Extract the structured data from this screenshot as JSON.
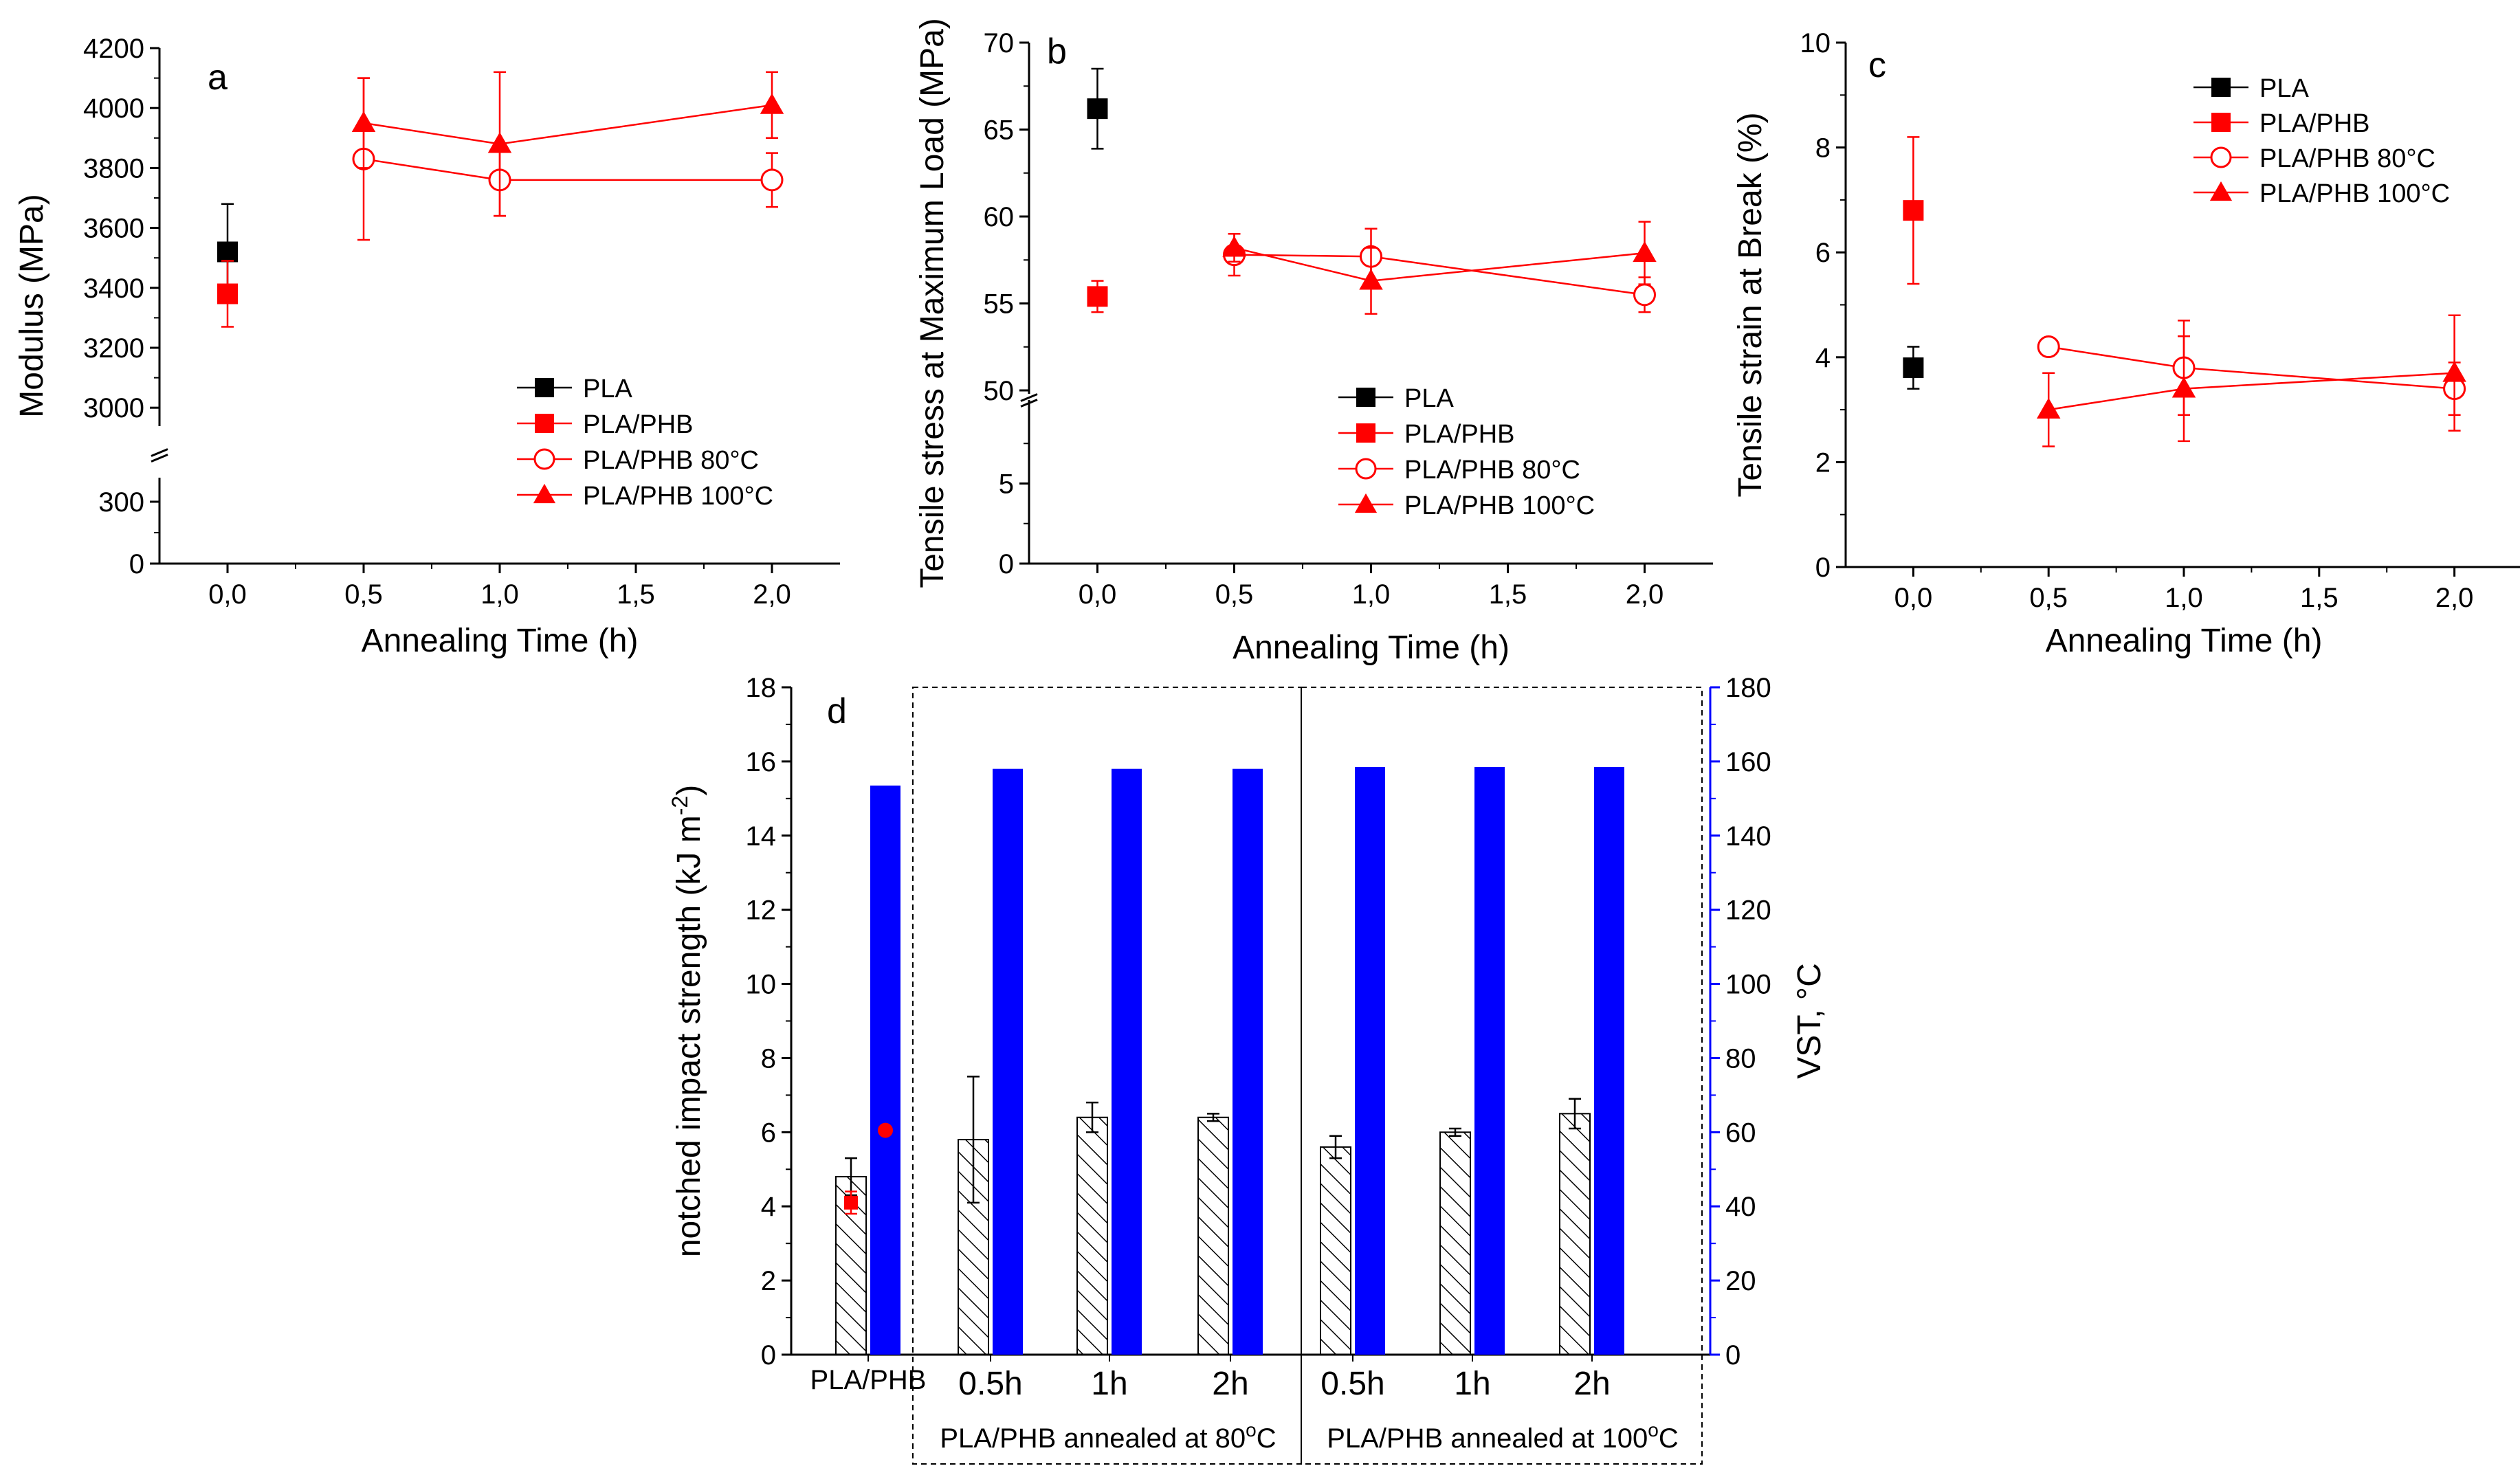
{
  "colors": {
    "black": "#000000",
    "red": "#ff0000",
    "blue": "#0000ff"
  },
  "chart_data": [
    {
      "id": "a",
      "type": "scatter",
      "panel_label": "a",
      "xlabel": "Annealing Time (h)",
      "ylabel": "Modulus (MPa)",
      "xlim": [
        -0.25,
        2.25
      ],
      "xticks": [
        "0,0",
        "0,5",
        "1,0",
        "1,5",
        "2,0"
      ],
      "ylim_lower": [
        0,
        400
      ],
      "yticks_lower": [
        "0",
        "300"
      ],
      "ylim_upper": [
        2950,
        4200
      ],
      "yticks_upper": [
        "3000",
        "3200",
        "3400",
        "3600",
        "3800",
        "4000",
        "4200"
      ],
      "legend": [
        "PLA",
        "PLA/PHB",
        "PLA/PHB 80°C",
        "PLA/PHB 100°C"
      ],
      "series": [
        {
          "name": "PLA",
          "marker": "square",
          "color": "#000000",
          "connected": false,
          "x": [
            0
          ],
          "y": [
            3520
          ],
          "err": [
            160
          ]
        },
        {
          "name": "PLA/PHB",
          "marker": "square",
          "color": "#ff0000",
          "connected": false,
          "x": [
            0
          ],
          "y": [
            3380
          ],
          "err": [
            110
          ]
        },
        {
          "name": "PLA/PHB 80°C",
          "marker": "circle-open",
          "color": "#ff0000",
          "connected": true,
          "x": [
            0.5,
            1,
            2
          ],
          "y": [
            3830,
            3760,
            3760
          ],
          "err": [
            270,
            120,
            90
          ]
        },
        {
          "name": "PLA/PHB 100°C",
          "marker": "triangle",
          "color": "#ff0000",
          "connected": true,
          "x": [
            0.5,
            1,
            2
          ],
          "y": [
            3950,
            3880,
            4010
          ],
          "err": [
            150,
            240,
            110
          ]
        }
      ]
    },
    {
      "id": "b",
      "type": "scatter",
      "panel_label": "b",
      "xlabel": "Annealing Time (h)",
      "ylabel": "Tensile stress at Maximum Load (MPa)",
      "xlim": [
        -0.25,
        2.25
      ],
      "xticks": [
        "0,0",
        "0,5",
        "1,0",
        "1,5",
        "2,0"
      ],
      "ylim_lower": [
        0,
        10
      ],
      "yticks_lower": [
        "0",
        "5"
      ],
      "ylim_upper": [
        50,
        70
      ],
      "yticks_upper": [
        "50",
        "55",
        "60",
        "65",
        "70"
      ],
      "legend": [
        "PLA",
        "PLA/PHB",
        "PLA/PHB 80°C",
        "PLA/PHB 100°C"
      ],
      "series": [
        {
          "name": "PLA",
          "marker": "square",
          "color": "#000000",
          "connected": false,
          "x": [
            0
          ],
          "y": [
            66.2
          ],
          "err": [
            2.3
          ]
        },
        {
          "name": "PLA/PHB",
          "marker": "square",
          "color": "#ff0000",
          "connected": false,
          "x": [
            0
          ],
          "y": [
            55.4
          ],
          "err": [
            0.9
          ]
        },
        {
          "name": "PLA/PHB 80°C",
          "marker": "circle-open",
          "color": "#ff0000",
          "connected": true,
          "x": [
            0.5,
            1,
            2
          ],
          "y": [
            57.8,
            57.7,
            55.5
          ],
          "err": [
            1.2,
            1.6,
            1.0
          ]
        },
        {
          "name": "PLA/PHB 100°C",
          "marker": "triangle",
          "color": "#ff0000",
          "connected": true,
          "x": [
            0.5,
            1,
            2
          ],
          "y": [
            58.2,
            56.3,
            57.9
          ],
          "err": [
            0.8,
            1.9,
            1.8
          ]
        }
      ]
    },
    {
      "id": "c",
      "type": "scatter",
      "panel_label": "c",
      "xlabel": "Annealing Time (h)",
      "ylabel": "Tensile strain at Break (%)",
      "xlim": [
        -0.25,
        2.25
      ],
      "xticks": [
        "0,0",
        "0,5",
        "1,0",
        "1,5",
        "2,0"
      ],
      "ylim": [
        0,
        10
      ],
      "yticks": [
        "0",
        "2",
        "4",
        "6",
        "8",
        "10"
      ],
      "legend": [
        "PLA",
        "PLA/PHB",
        "PLA/PHB 80°C",
        "PLA/PHB 100°C"
      ],
      "series": [
        {
          "name": "PLA",
          "marker": "square",
          "color": "#000000",
          "connected": false,
          "x": [
            0
          ],
          "y": [
            3.8
          ],
          "err": [
            0.4
          ]
        },
        {
          "name": "PLA/PHB",
          "marker": "square",
          "color": "#ff0000",
          "connected": false,
          "x": [
            0
          ],
          "y": [
            6.8
          ],
          "err": [
            1.4
          ]
        },
        {
          "name": "PLA/PHB 80°C",
          "marker": "circle-open",
          "color": "#ff0000",
          "connected": true,
          "x": [
            0.5,
            1,
            2
          ],
          "y": [
            4.2,
            3.8,
            3.4
          ],
          "err": [
            0.1,
            0.9,
            0.5
          ]
        },
        {
          "name": "PLA/PHB 100°C",
          "marker": "triangle",
          "color": "#ff0000",
          "connected": true,
          "x": [
            0.5,
            1,
            2
          ],
          "y": [
            3.0,
            3.4,
            3.7
          ],
          "err": [
            0.7,
            1.0,
            1.1
          ]
        }
      ]
    },
    {
      "id": "d",
      "type": "bar",
      "panel_label": "d",
      "ylabel_left": "notched impact strength (kJ m",
      "ylabel_left_sup": "-2",
      "ylabel_left_end": ")",
      "ylabel_right": "VST, °C",
      "ylim_left": [
        0,
        18
      ],
      "yticks_left": [
        "0",
        "2",
        "4",
        "6",
        "8",
        "10",
        "12",
        "14",
        "16",
        "18"
      ],
      "ylim_right": [
        0,
        180
      ],
      "yticks_right": [
        "0",
        "20",
        "40",
        "60",
        "80",
        "100",
        "120",
        "140",
        "160",
        "180"
      ],
      "categories": [
        "PLA/PHB",
        "0.5h",
        "1h",
        "2h",
        "0.5h",
        "1h",
        "2h"
      ],
      "group_labels": [
        {
          "text": "PLA/PHB annealed at 80",
          "sup": "o",
          "end": "C"
        },
        {
          "text": "PLA/PHB annealed at 100",
          "sup": "o",
          "end": "C"
        }
      ],
      "impact_strength": [
        4.8,
        5.8,
        6.4,
        6.4,
        5.6,
        6.0,
        6.5
      ],
      "impact_strength_err": [
        0.5,
        1.7,
        0.4,
        0.1,
        0.3,
        0.1,
        0.4
      ],
      "vst": [
        153.5,
        158,
        158,
        158,
        158.5,
        158.5,
        158.5
      ],
      "pla_reference": {
        "impact_strength": 4.1,
        "impact_strength_err": 0.3,
        "vst": 60.5
      }
    }
  ]
}
